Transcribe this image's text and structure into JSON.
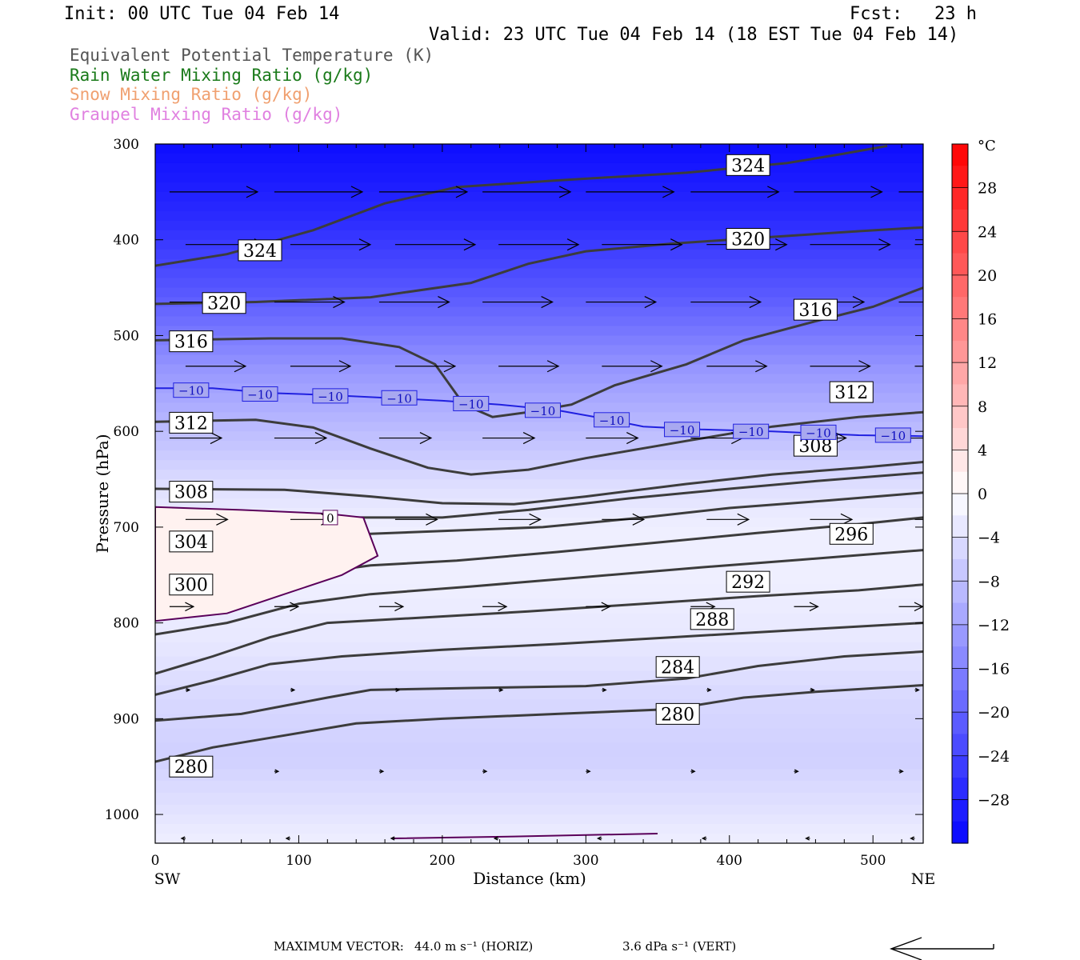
{
  "header": {
    "init": "Init: 00 UTC Tue 04 Feb 14",
    "fcst": "Fcst:   23 h",
    "valid": "Valid: 23 UTC Tue 04 Feb 14 (18 EST Tue 04 Feb 14)"
  },
  "legend": [
    {
      "text": "Equivalent Potential Temperature (K)",
      "color": "#555555"
    },
    {
      "text": "Rain Water Mixing Ratio (g/kg)",
      "color": "#1a7a1a"
    },
    {
      "text": "Snow Mixing Ratio (g/kg)",
      "color": "#f0a070"
    },
    {
      "text": "Graupel Mixing Ratio (g/kg)",
      "color": "#e080e0"
    }
  ],
  "chart_data": {
    "type": "heatmap",
    "xlabel": "Distance (km)",
    "ylabel": "Pressure (hPa)",
    "xlim": [
      0,
      535
    ],
    "ylim": [
      1030,
      300
    ],
    "x_ticks": [
      0,
      100,
      200,
      300,
      400,
      500
    ],
    "y_ticks": [
      300,
      400,
      500,
      600,
      700,
      800,
      900,
      1000
    ],
    "x_end_labels": {
      "left": "SW",
      "right": "NE"
    },
    "colorbar": {
      "unit": "°C",
      "min": -32,
      "max": 32,
      "tick_values": [
        28,
        24,
        20,
        16,
        12,
        8,
        4,
        0,
        -4,
        -8,
        -12,
        -16,
        -20,
        -24,
        -28
      ],
      "tick_labels": [
        "28",
        "24",
        "20",
        "16",
        "12",
        "8",
        "4",
        "0",
        "−4",
        "−8",
        "−12",
        "−16",
        "−20",
        "−24",
        "−28"
      ]
    },
    "temperature_contours": [
      {
        "value": -10,
        "label": "−10",
        "color": "#2020e0",
        "points": [
          [
            0,
            555
          ],
          [
            40,
            555
          ],
          [
            80,
            560
          ],
          [
            120,
            562
          ],
          [
            160,
            565
          ],
          [
            200,
            568
          ],
          [
            240,
            572
          ],
          [
            280,
            578
          ],
          [
            310,
            586
          ],
          [
            340,
            595
          ],
          [
            380,
            598
          ],
          [
            430,
            600
          ],
          [
            490,
            604
          ],
          [
            535,
            605
          ]
        ],
        "labels_at": [
          [
            25,
            557
          ],
          [
            73,
            561
          ],
          [
            122,
            563
          ],
          [
            170,
            565
          ],
          [
            220,
            571
          ],
          [
            270,
            578
          ],
          [
            318,
            588
          ],
          [
            367,
            598
          ],
          [
            415,
            600
          ],
          [
            462,
            601
          ],
          [
            514,
            604
          ]
        ]
      },
      {
        "value": 0,
        "label": "0",
        "color": "#5a005a",
        "points": [
          [
            0,
            679
          ],
          [
            60,
            682
          ],
          [
            120,
            686
          ],
          [
            145,
            690
          ],
          [
            155,
            730
          ],
          [
            130,
            750
          ],
          [
            90,
            770
          ],
          [
            50,
            790
          ],
          [
            0,
            798
          ]
        ],
        "labels_at": [
          [
            122,
            690
          ]
        ]
      },
      {
        "value": 0,
        "label": "",
        "color": "#5a005a",
        "points": [
          [
            165,
            1025
          ],
          [
            250,
            1023
          ],
          [
            350,
            1020
          ]
        ],
        "labels_at": []
      }
    ],
    "theta_e_contours": [
      {
        "value": 324,
        "points": [
          [
            0,
            427
          ],
          [
            50,
            415
          ],
          [
            110,
            390
          ],
          [
            160,
            362
          ],
          [
            210,
            345
          ],
          [
            280,
            338
          ],
          [
            370,
            330
          ],
          [
            440,
            320
          ],
          [
            480,
            310
          ],
          [
            510,
            302
          ]
        ]
      },
      {
        "value": 320,
        "points": [
          [
            0,
            467
          ],
          [
            70,
            465
          ],
          [
            150,
            460
          ],
          [
            220,
            445
          ],
          [
            260,
            425
          ],
          [
            300,
            412
          ],
          [
            360,
            404
          ],
          [
            430,
            397
          ],
          [
            490,
            391
          ],
          [
            535,
            387
          ]
        ]
      },
      {
        "value": 316,
        "points": [
          [
            0,
            505
          ],
          [
            80,
            503
          ],
          [
            130,
            503
          ],
          [
            170,
            512
          ],
          [
            195,
            530
          ],
          [
            215,
            572
          ],
          [
            235,
            585
          ],
          [
            260,
            580
          ],
          [
            290,
            572
          ],
          [
            320,
            552
          ],
          [
            370,
            530
          ],
          [
            410,
            505
          ],
          [
            460,
            485
          ],
          [
            500,
            470
          ],
          [
            535,
            450
          ]
        ]
      },
      {
        "value": 312,
        "points": [
          [
            0,
            590
          ],
          [
            70,
            588
          ],
          [
            110,
            596
          ],
          [
            150,
            618
          ],
          [
            190,
            638
          ],
          [
            220,
            645
          ],
          [
            260,
            640
          ],
          [
            300,
            628
          ],
          [
            370,
            610
          ],
          [
            430,
            595
          ],
          [
            490,
            585
          ],
          [
            535,
            580
          ]
        ]
      },
      {
        "value": 308,
        "points": [
          [
            0,
            660
          ],
          [
            90,
            661
          ],
          [
            150,
            668
          ],
          [
            200,
            675
          ],
          [
            250,
            676
          ],
          [
            300,
            668
          ],
          [
            370,
            655
          ],
          [
            430,
            645
          ],
          [
            490,
            638
          ],
          [
            535,
            632
          ]
        ]
      },
      {
        "value": 304,
        "points": [
          [
            0,
            705
          ],
          [
            50,
            695
          ],
          [
            100,
            690
          ],
          [
            150,
            690
          ],
          [
            200,
            690
          ],
          [
            260,
            682
          ],
          [
            330,
            670
          ],
          [
            400,
            660
          ],
          [
            460,
            652
          ],
          [
            535,
            643
          ]
        ]
      },
      {
        "value": 300,
        "points": [
          [
            0,
            740
          ],
          [
            40,
            730
          ],
          [
            100,
            712
          ],
          [
            150,
            707
          ],
          [
            200,
            704
          ],
          [
            270,
            700
          ],
          [
            340,
            690
          ],
          [
            400,
            680
          ],
          [
            470,
            672
          ],
          [
            535,
            664
          ]
        ]
      },
      {
        "value": 296,
        "points": [
          [
            0,
            785
          ],
          [
            50,
            770
          ],
          [
            100,
            750
          ],
          [
            150,
            740
          ],
          [
            210,
            735
          ],
          [
            280,
            726
          ],
          [
            350,
            716
          ],
          [
            420,
            706
          ],
          [
            490,
            697
          ],
          [
            535,
            690
          ]
        ]
      },
      {
        "value": 292,
        "points": [
          [
            0,
            812
          ],
          [
            50,
            800
          ],
          [
            100,
            780
          ],
          [
            150,
            770
          ],
          [
            220,
            762
          ],
          [
            300,
            752
          ],
          [
            380,
            742
          ],
          [
            450,
            734
          ],
          [
            535,
            724
          ]
        ]
      },
      {
        "value": 288,
        "points": [
          [
            0,
            853
          ],
          [
            40,
            835
          ],
          [
            80,
            815
          ],
          [
            120,
            800
          ],
          [
            180,
            795
          ],
          [
            260,
            788
          ],
          [
            340,
            780
          ],
          [
            420,
            772
          ],
          [
            490,
            766
          ],
          [
            535,
            760
          ]
        ]
      },
      {
        "value": 284,
        "points": [
          [
            0,
            875
          ],
          [
            40,
            860
          ],
          [
            80,
            843
          ],
          [
            130,
            835
          ],
          [
            200,
            828
          ],
          [
            280,
            822
          ],
          [
            360,
            815
          ],
          [
            440,
            808
          ],
          [
            535,
            800
          ]
        ]
      },
      {
        "value": 280,
        "points": [
          [
            0,
            902
          ],
          [
            60,
            895
          ],
          [
            120,
            878
          ],
          [
            150,
            870
          ],
          [
            220,
            868
          ],
          [
            300,
            866
          ],
          [
            370,
            858
          ],
          [
            420,
            845
          ],
          [
            480,
            835
          ],
          [
            535,
            830
          ]
        ]
      },
      {
        "value": 276,
        "points": [
          [
            0,
            945
          ],
          [
            40,
            930
          ],
          [
            80,
            920
          ],
          [
            140,
            905
          ],
          [
            200,
            900
          ],
          [
            280,
            895
          ],
          [
            360,
            890
          ],
          [
            410,
            878
          ],
          [
            460,
            872
          ],
          [
            535,
            865
          ]
        ]
      }
    ],
    "theta_e_labels": [
      {
        "text": "324",
        "x": 413,
        "y": 322
      },
      {
        "text": "324",
        "x": 73,
        "y": 411
      },
      {
        "text": "320",
        "x": 413,
        "y": 399
      },
      {
        "text": "320",
        "x": 48,
        "y": 466
      },
      {
        "text": "316",
        "x": 460,
        "y": 473
      },
      {
        "text": "316",
        "x": 25,
        "y": 506
      },
      {
        "text": "312",
        "x": 485,
        "y": 559
      },
      {
        "text": "312",
        "x": 25,
        "y": 591
      },
      {
        "text": "308",
        "x": 460,
        "y": 615
      },
      {
        "text": "308",
        "x": 25,
        "y": 663
      },
      {
        "text": "304",
        "x": 25,
        "y": 715
      },
      {
        "text": "296",
        "x": 485,
        "y": 707
      },
      {
        "text": "300",
        "x": 25,
        "y": 760
      },
      {
        "text": "292",
        "x": 413,
        "y": 757
      },
      {
        "text": "288",
        "x": 388,
        "y": 796
      },
      {
        "text": "284",
        "x": 364,
        "y": 846
      },
      {
        "text": "280",
        "x": 364,
        "y": 895
      },
      {
        "text": "280",
        "x": 25,
        "y": 950
      }
    ],
    "temperature_field": [
      {
        "p": 300,
        "t": -31
      },
      {
        "p": 340,
        "t": -29
      },
      {
        "p": 380,
        "t": -27
      },
      {
        "p": 420,
        "t": -24
      },
      {
        "p": 460,
        "t": -21
      },
      {
        "p": 500,
        "t": -17
      },
      {
        "p": 540,
        "t": -13
      },
      {
        "p": 580,
        "t": -10
      },
      {
        "p": 620,
        "t": -7
      },
      {
        "p": 660,
        "t": -4
      },
      {
        "p": 700,
        "t": -2
      },
      {
        "p": 760,
        "t": -2
      },
      {
        "p": 820,
        "t": -3
      },
      {
        "p": 880,
        "t": -5
      },
      {
        "p": 940,
        "t": -6
      },
      {
        "p": 990,
        "t": -4
      },
      {
        "p": 1030,
        "t": -2
      }
    ],
    "wind_vectors_u_ms": [
      {
        "p": 350,
        "u": 44
      },
      {
        "p": 405,
        "u": 40
      },
      {
        "p": 465,
        "u": 35
      },
      {
        "p": 532,
        "u": 30
      },
      {
        "p": 607,
        "u": 26
      },
      {
        "p": 692,
        "u": 21
      },
      {
        "p": 783,
        "u": 12
      },
      {
        "p": 870,
        "u": 2
      },
      {
        "p": 955,
        "u": 2
      },
      {
        "p": 1025,
        "u": -2
      }
    ]
  },
  "footer": {
    "max_vector_label": "MAXIMUM VECTOR:",
    "horiz": "44.0 m s⁻¹ (HORIZ)",
    "vert": "3.6 dPa s⁻¹ (VERT)"
  }
}
